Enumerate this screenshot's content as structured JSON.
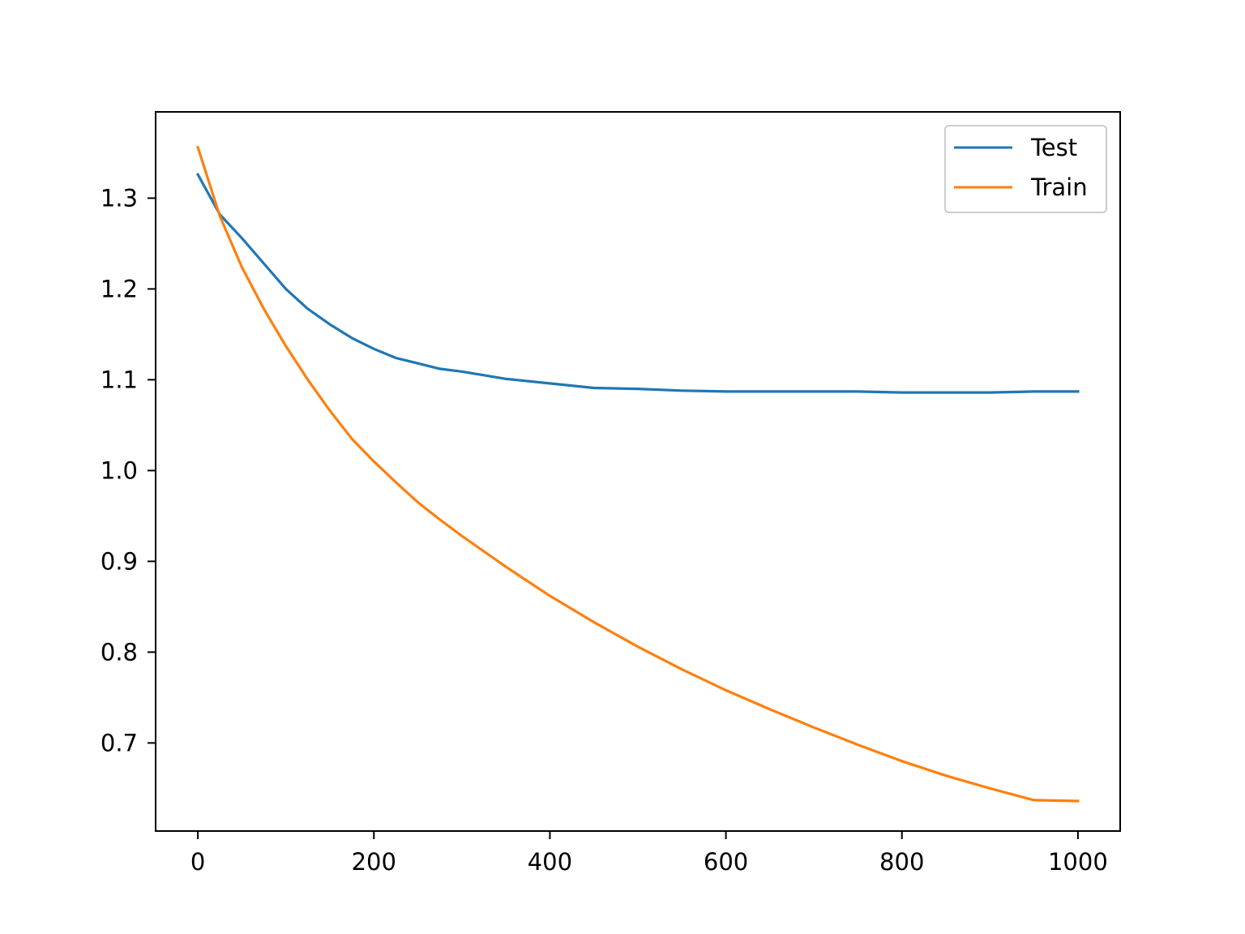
{
  "chart_data": {
    "type": "line",
    "title": "",
    "xlabel": "",
    "ylabel": "",
    "xlim": [
      -48,
      1048
    ],
    "ylim": [
      0.603,
      1.395
    ],
    "x_ticks": [
      0,
      200,
      400,
      600,
      800,
      1000
    ],
    "x_tick_labels": [
      "0",
      "200",
      "400",
      "600",
      "800",
      "1000"
    ],
    "y_ticks": [
      0.7,
      0.8,
      0.9,
      1.0,
      1.1,
      1.2,
      1.3
    ],
    "y_tick_labels": [
      "0.7",
      "0.8",
      "0.9",
      "1.0",
      "1.1",
      "1.2",
      "1.3"
    ],
    "grid": false,
    "legend_position": "top-right",
    "x": [
      0,
      25,
      50,
      75,
      100,
      125,
      150,
      175,
      200,
      225,
      250,
      275,
      300,
      350,
      400,
      450,
      500,
      550,
      600,
      650,
      700,
      750,
      800,
      850,
      900,
      950,
      1000
    ],
    "series": [
      {
        "name": "Test",
        "color": "#1f77b4",
        "values": [
          1.326,
          1.282,
          1.256,
          1.228,
          1.2,
          1.178,
          1.161,
          1.146,
          1.134,
          1.124,
          1.118,
          1.112,
          1.109,
          1.101,
          1.096,
          1.091,
          1.09,
          1.088,
          1.087,
          1.087,
          1.087,
          1.087,
          1.086,
          1.086,
          1.086,
          1.087,
          1.087
        ]
      },
      {
        "name": "Train",
        "color": "#ff7f0e",
        "values": [
          1.356,
          1.28,
          1.224,
          1.178,
          1.137,
          1.1,
          1.066,
          1.035,
          1.01,
          0.987,
          0.965,
          0.946,
          0.928,
          0.894,
          0.862,
          0.833,
          0.806,
          0.781,
          0.758,
          0.737,
          0.717,
          0.698,
          0.68,
          0.664,
          0.65,
          0.637,
          0.636
        ]
      }
    ]
  }
}
